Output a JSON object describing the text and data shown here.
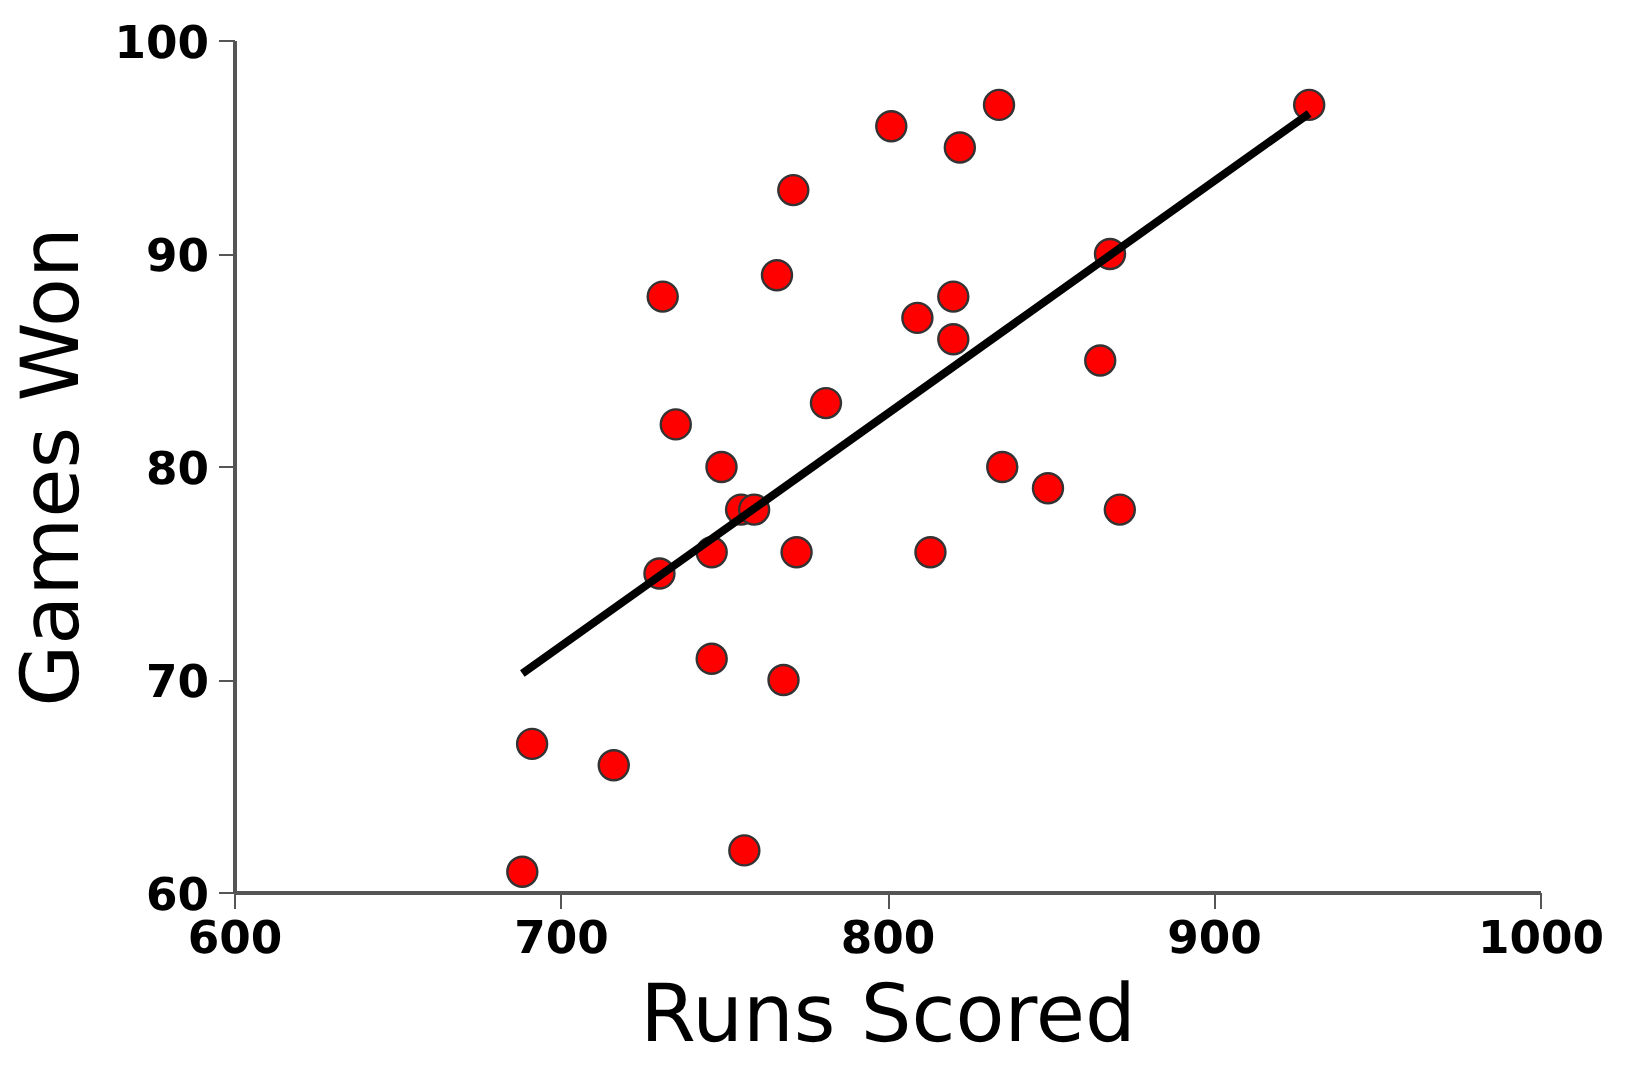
{
  "chart_data": {
    "type": "scatter",
    "xlabel": "Runs Scored",
    "ylabel": "Games Won",
    "xlim": [
      600,
      1000
    ],
    "xticks": [
      600,
      700,
      800,
      900,
      1000
    ],
    "ylim": [
      60,
      100
    ],
    "yticks": [
      60,
      70,
      80,
      90,
      100
    ],
    "grid": false,
    "series": [
      {
        "marker": "circle",
        "color": "#ff0000",
        "x": [
          688,
          691,
          716,
          731,
          735,
          730,
          749,
          746,
          746,
          756,
          768,
          772,
          755,
          759,
          766,
          771,
          781,
          801,
          809,
          813,
          820,
          820,
          822,
          834,
          835,
          849,
          865,
          868,
          871,
          929
        ],
        "values": [
          61,
          67,
          66,
          88,
          82,
          75,
          80,
          76,
          71,
          62,
          70,
          76,
          78,
          78,
          89,
          93,
          83,
          96,
          87,
          76,
          88,
          86,
          95,
          97,
          80,
          79,
          85,
          90,
          78,
          97
        ]
      },
      {
        "type": "line",
        "color": "#000000",
        "x": [
          688,
          929
        ],
        "values": [
          70.3,
          96.6
        ]
      }
    ]
  }
}
